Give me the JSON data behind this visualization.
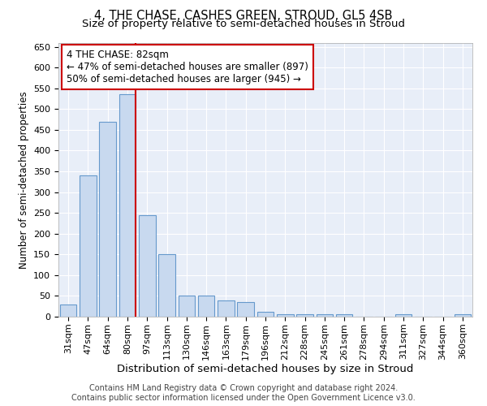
{
  "title": "4, THE CHASE, CASHES GREEN, STROUD, GL5 4SB",
  "subtitle": "Size of property relative to semi-detached houses in Stroud",
  "xlabel": "Distribution of semi-detached houses by size in Stroud",
  "ylabel": "Number of semi-detached properties",
  "categories": [
    "31sqm",
    "47sqm",
    "64sqm",
    "80sqm",
    "97sqm",
    "113sqm",
    "130sqm",
    "146sqm",
    "163sqm",
    "179sqm",
    "196sqm",
    "212sqm",
    "228sqm",
    "245sqm",
    "261sqm",
    "278sqm",
    "294sqm",
    "311sqm",
    "327sqm",
    "344sqm",
    "360sqm"
  ],
  "values": [
    30,
    340,
    470,
    535,
    245,
    150,
    50,
    50,
    40,
    35,
    12,
    5,
    5,
    5,
    5,
    0,
    0,
    5,
    0,
    0,
    5
  ],
  "bar_color": "#c8d9ef",
  "bar_edge_color": "#6699cc",
  "vline_color": "#cc0000",
  "annotation_text": "4 THE CHASE: 82sqm\n← 47% of semi-detached houses are smaller (897)\n50% of semi-detached houses are larger (945) →",
  "annotation_box_color": "#ffffff",
  "annotation_box_edge_color": "#cc0000",
  "ylim": [
    0,
    660
  ],
  "yticks": [
    0,
    50,
    100,
    150,
    200,
    250,
    300,
    350,
    400,
    450,
    500,
    550,
    600,
    650
  ],
  "background_color": "#e8eef8",
  "footer_text": "Contains HM Land Registry data © Crown copyright and database right 2024.\nContains public sector information licensed under the Open Government Licence v3.0.",
  "title_fontsize": 10.5,
  "subtitle_fontsize": 9.5,
  "xlabel_fontsize": 9.5,
  "ylabel_fontsize": 8.5,
  "tick_fontsize": 8,
  "footer_fontsize": 7,
  "ann_fontsize": 8.5
}
